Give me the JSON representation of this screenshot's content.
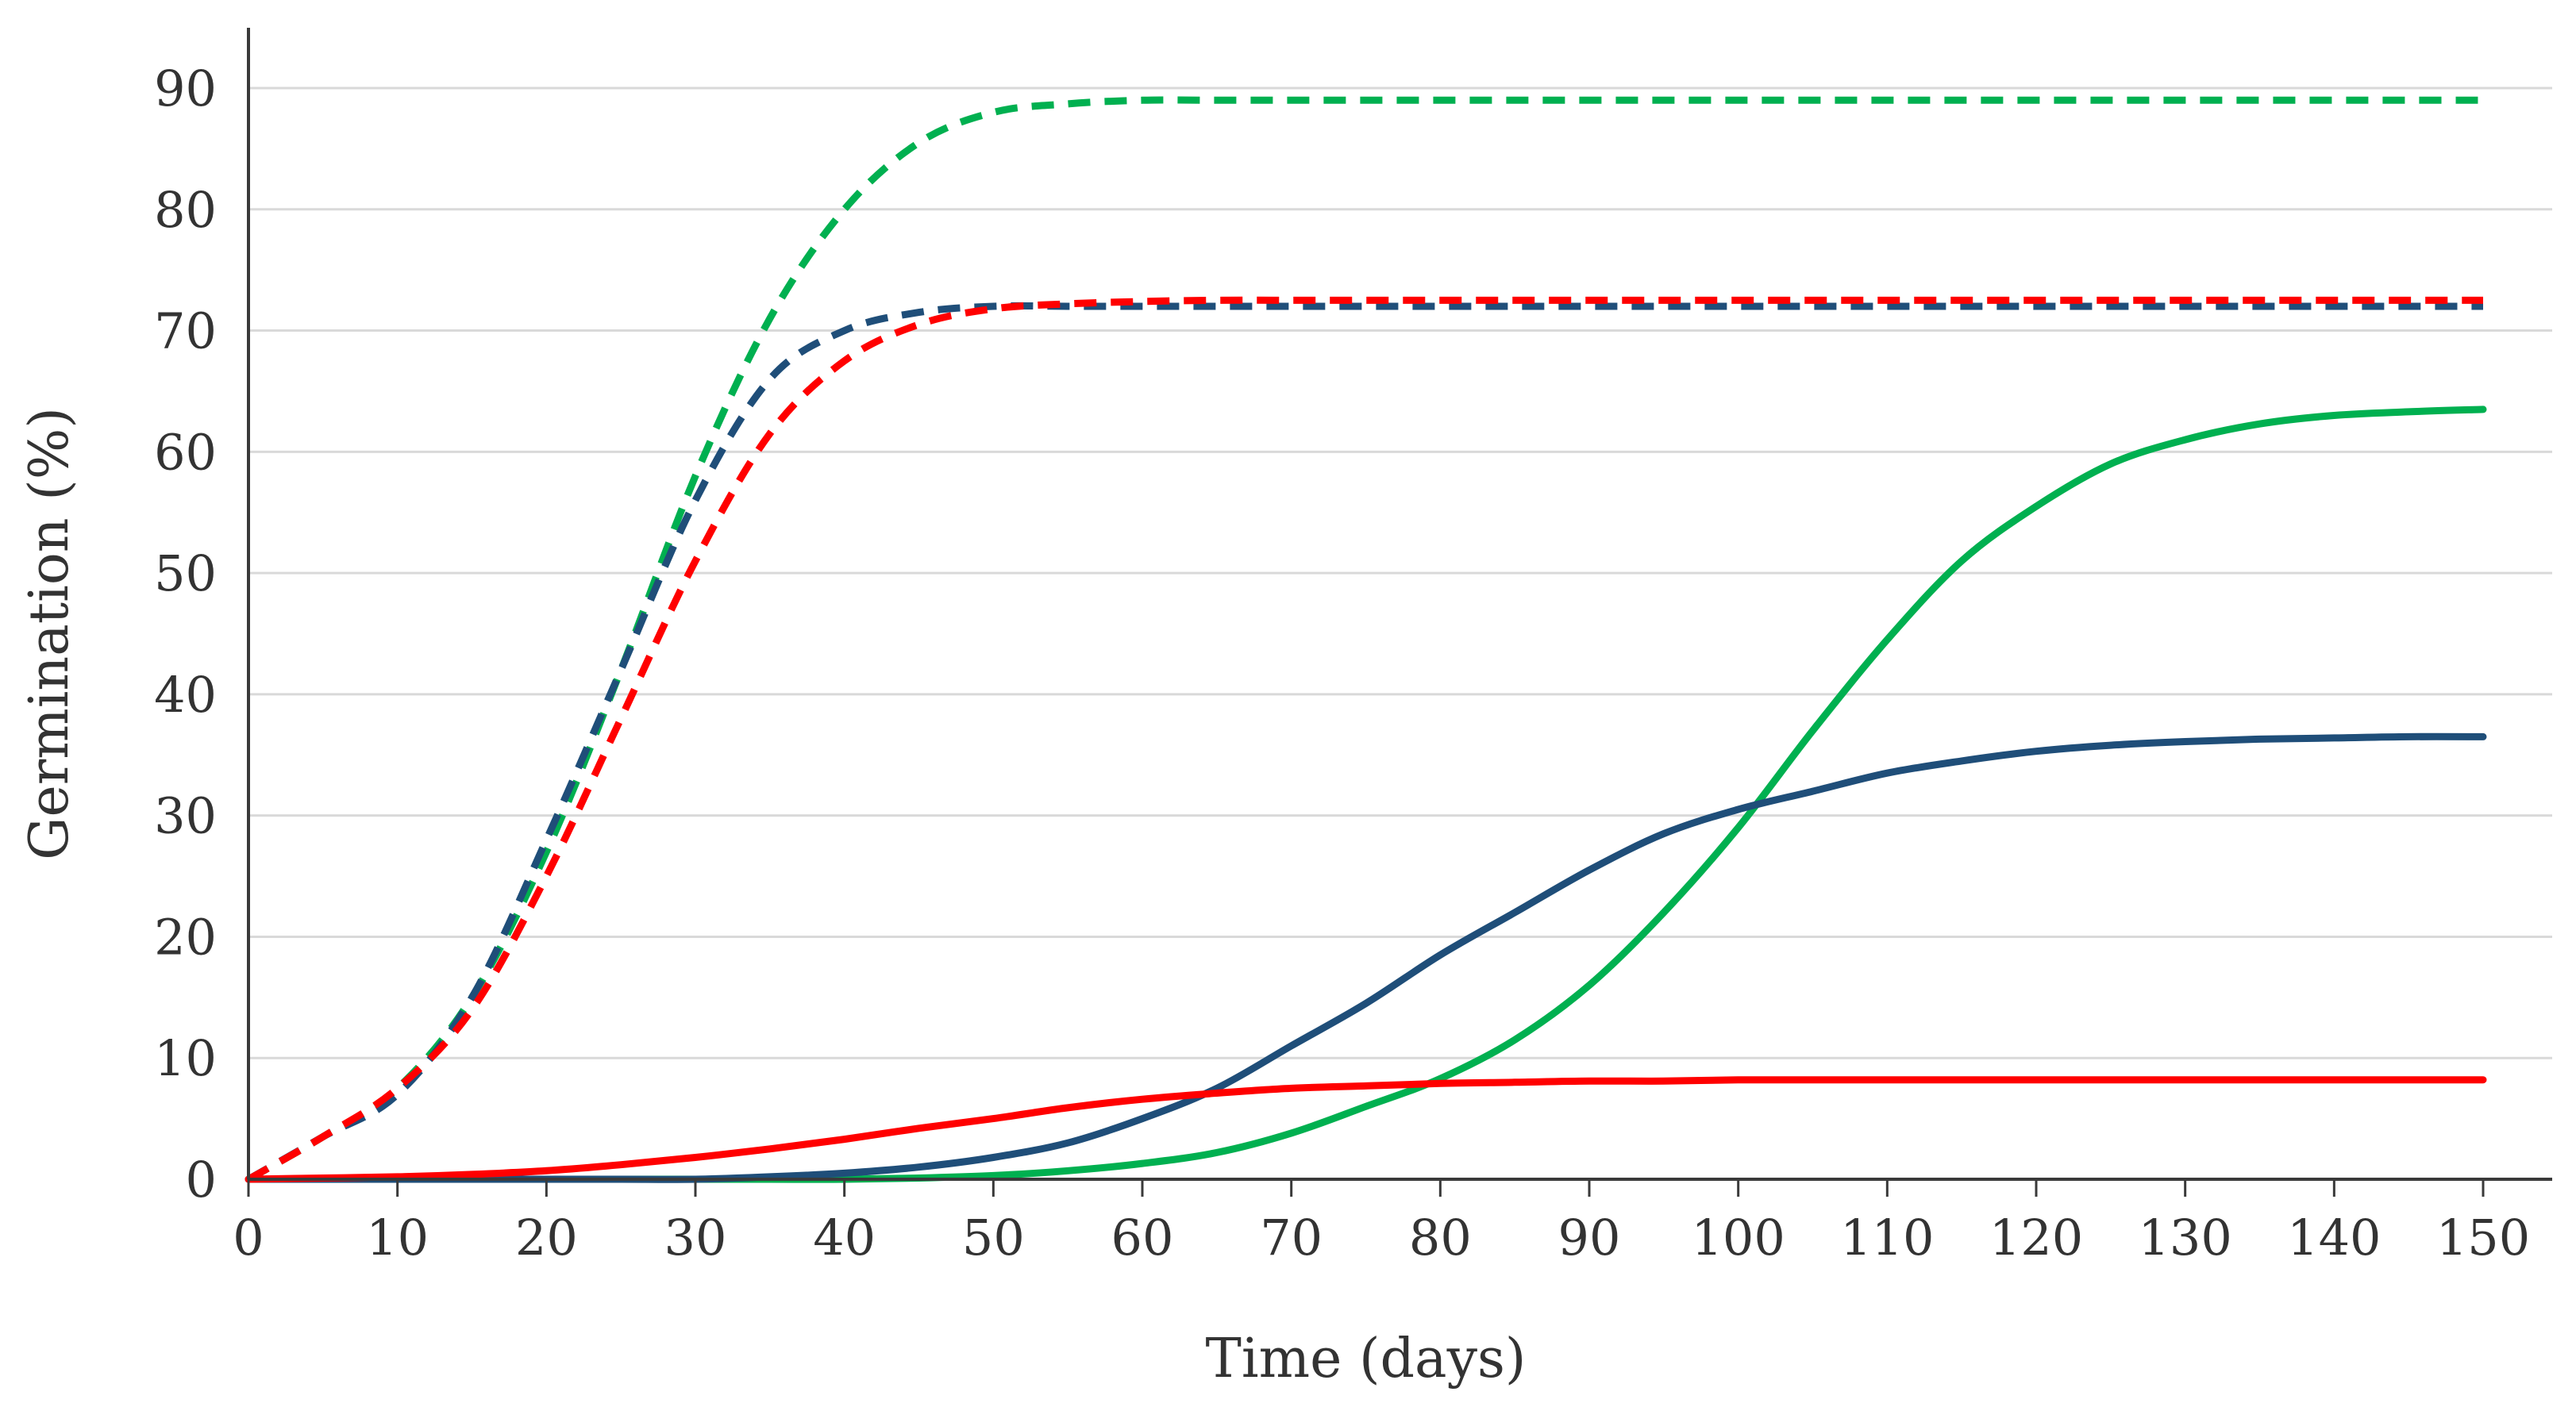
{
  "chart_data": {
    "type": "line",
    "title": "",
    "xlabel": "Time (days)",
    "ylabel": "Germination (%)",
    "xlim": [
      0,
      150
    ],
    "ylim": [
      0,
      90
    ],
    "xticks": [
      0,
      10,
      20,
      30,
      40,
      50,
      60,
      70,
      80,
      90,
      100,
      110,
      120,
      130,
      140,
      150
    ],
    "yticks": [
      0,
      10,
      20,
      30,
      40,
      50,
      60,
      70,
      80,
      90
    ],
    "grid": "horizontal",
    "legend": "none",
    "x": [
      0,
      5,
      10,
      15,
      20,
      25,
      30,
      35,
      40,
      45,
      50,
      55,
      60,
      65,
      70,
      75,
      80,
      85,
      90,
      95,
      100,
      105,
      110,
      115,
      120,
      125,
      130,
      135,
      140,
      145,
      150
    ],
    "series": [
      {
        "name": "green-dashed",
        "color": "#00B050",
        "style": "dashed",
        "values": [
          0,
          3.5,
          7.5,
          15,
          27,
          42,
          58,
          71,
          80,
          85.5,
          88,
          88.7,
          89,
          89,
          89,
          89,
          89,
          89,
          89,
          89,
          89,
          89,
          89,
          89,
          89,
          89,
          89,
          89,
          89,
          89,
          89
        ]
      },
      {
        "name": "blue-dashed",
        "color": "#1F4E79",
        "style": "dashed",
        "values": [
          0,
          3.5,
          7,
          15,
          28,
          42,
          56,
          66,
          70,
          71.5,
          72,
          72,
          72,
          72,
          72,
          72,
          72,
          72,
          72,
          72,
          72,
          72,
          72,
          72,
          72,
          72,
          72,
          72,
          72,
          72,
          72
        ]
      },
      {
        "name": "red-dashed",
        "color": "#FF0000",
        "style": "dashed",
        "values": [
          0,
          3.5,
          7.5,
          14,
          25,
          38,
          51,
          61.5,
          67.5,
          70.5,
          71.8,
          72.2,
          72.4,
          72.5,
          72.5,
          72.5,
          72.5,
          72.5,
          72.5,
          72.5,
          72.5,
          72.5,
          72.5,
          72.5,
          72.5,
          72.5,
          72.5,
          72.5,
          72.5,
          72.5,
          72.5
        ]
      },
      {
        "name": "green-solid",
        "color": "#00B050",
        "style": "solid",
        "values": [
          0,
          0,
          0,
          0,
          0,
          0,
          0,
          0,
          0,
          0.1,
          0.3,
          0.7,
          1.3,
          2.2,
          3.8,
          6,
          8.3,
          11.5,
          16,
          22,
          29,
          37,
          44.5,
          51,
          55.5,
          59,
          61,
          62.3,
          63,
          63.3,
          63.5
        ]
      },
      {
        "name": "blue-solid",
        "color": "#1F4E79",
        "style": "solid",
        "values": [
          0,
          0,
          0,
          0,
          0,
          0,
          0,
          0.2,
          0.5,
          1,
          1.8,
          3,
          5,
          7.5,
          11,
          14.5,
          18.5,
          22,
          25.5,
          28.5,
          30.5,
          32,
          33.5,
          34.5,
          35.3,
          35.8,
          36.1,
          36.3,
          36.4,
          36.5,
          36.5
        ]
      },
      {
        "name": "red-solid",
        "color": "#FF0000",
        "style": "solid",
        "values": [
          0,
          0.1,
          0.2,
          0.4,
          0.7,
          1.2,
          1.8,
          2.5,
          3.3,
          4.2,
          5,
          5.9,
          6.6,
          7.1,
          7.5,
          7.7,
          7.9,
          8,
          8.1,
          8.1,
          8.2,
          8.2,
          8.2,
          8.2,
          8.2,
          8.2,
          8.2,
          8.2,
          8.2,
          8.2,
          8.2
        ]
      }
    ]
  }
}
